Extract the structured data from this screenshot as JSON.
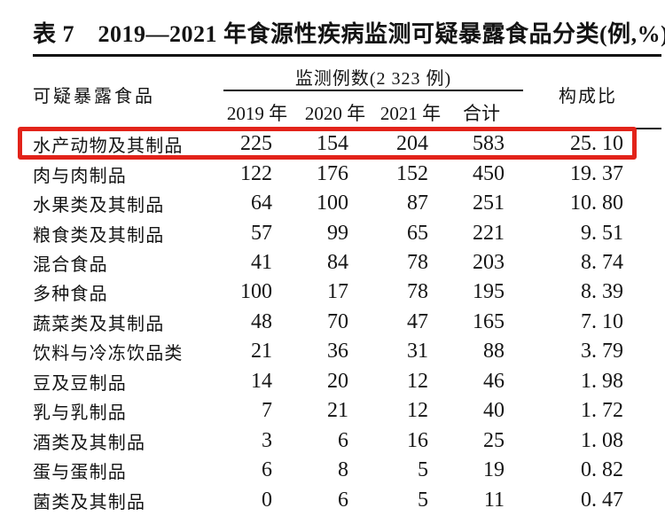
{
  "title": "表 7　2019—2021 年食源性疾病监测可疑暴露食品分类(例,%)",
  "table": {
    "header": {
      "food_col": "可疑暴露食品",
      "monitor_group": "监测例数(2 323 例)",
      "year_cols": [
        "2019 年",
        "2020 年",
        "2021 年",
        "合计"
      ],
      "ratio_col": "构成比"
    },
    "rows": [
      {
        "food": "水产动物及其制品",
        "y2019": "225",
        "y2020": "154",
        "y2021": "204",
        "total": "583",
        "ratio": "25. 10"
      },
      {
        "food": "肉与肉制品",
        "y2019": "122",
        "y2020": "176",
        "y2021": "152",
        "total": "450",
        "ratio": "19. 37"
      },
      {
        "food": "水果类及其制品",
        "y2019": "64",
        "y2020": "100",
        "y2021": "87",
        "total": "251",
        "ratio": "10. 80"
      },
      {
        "food": "粮食类及其制品",
        "y2019": "57",
        "y2020": "99",
        "y2021": "65",
        "total": "221",
        "ratio": "9. 51"
      },
      {
        "food": "混合食品",
        "y2019": "41",
        "y2020": "84",
        "y2021": "78",
        "total": "203",
        "ratio": "8. 74"
      },
      {
        "food": "多种食品",
        "y2019": "100",
        "y2020": "17",
        "y2021": "78",
        "total": "195",
        "ratio": "8. 39"
      },
      {
        "food": "蔬菜类及其制品",
        "y2019": "48",
        "y2020": "70",
        "y2021": "47",
        "total": "165",
        "ratio": "7. 10"
      },
      {
        "food": "饮料与冷冻饮品类",
        "y2019": "21",
        "y2020": "36",
        "y2021": "31",
        "total": "88",
        "ratio": "3. 79"
      },
      {
        "food": "豆及豆制品",
        "y2019": "14",
        "y2020": "20",
        "y2021": "12",
        "total": "46",
        "ratio": "1. 98"
      },
      {
        "food": "乳与乳制品",
        "y2019": "7",
        "y2020": "21",
        "y2021": "12",
        "total": "40",
        "ratio": "1. 72"
      },
      {
        "food": "酒类及其制品",
        "y2019": "3",
        "y2020": "6",
        "y2021": "16",
        "total": "25",
        "ratio": "1. 08"
      },
      {
        "food": "蛋与蛋制品",
        "y2019": "6",
        "y2020": "8",
        "y2021": "5",
        "total": "19",
        "ratio": "0. 82"
      },
      {
        "food": "菌类及其制品",
        "y2019": "0",
        "y2020": "6",
        "y2021": "5",
        "total": "11",
        "ratio": "0. 47"
      }
    ]
  },
  "highlight": {
    "highlighted_row": "水产动物及其制品",
    "color": "#e2231a"
  }
}
